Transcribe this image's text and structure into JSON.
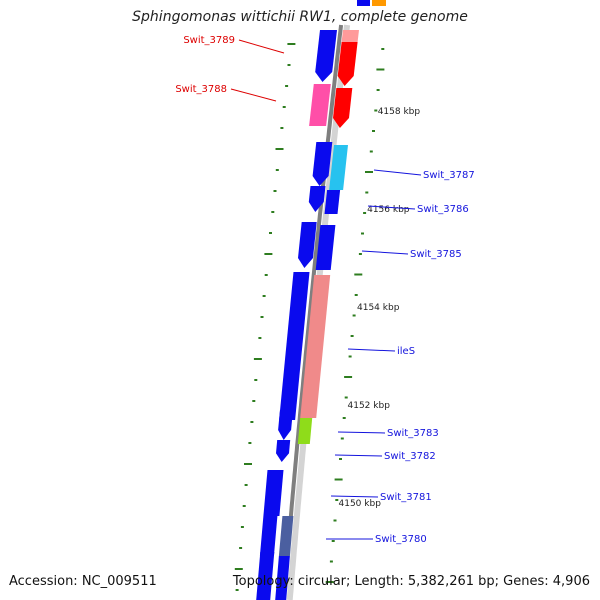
{
  "title": "Sphingomonas wittichii RW1, complete genome",
  "accession_text": "Accession: NC_009511",
  "summary_text": "Topology: circular; Length: 5,382,261 bp; Genes: 4,906",
  "colors": {
    "backbone_dark": "#7f7f7f",
    "backbone_light": "#d4d4d4",
    "cds_blue": "#0a0aee",
    "red": "#ff0000",
    "salmon": "#ff9a9a",
    "pink": "#ff4fa8",
    "magenta": "#e01090",
    "cyan": "#27c2ef",
    "ile_pink": "#f08a8a",
    "lime": "#8fdc1a",
    "slate": "#4b5fa0",
    "steel": "#5a7fa8",
    "orange": "#ff9900",
    "tick_green": "#2e7d1f",
    "label_red": "#dd0000",
    "label_blue": "#1414dd"
  },
  "scale_labels": [
    {
      "kbp": 4158,
      "text": "4158 kbp"
    },
    {
      "kbp": 4156,
      "text": "4156 kbp"
    },
    {
      "kbp": 4154,
      "text": "4154 kbp"
    },
    {
      "kbp": 4152,
      "text": "4152 kbp"
    },
    {
      "kbp": 4150,
      "text": "4150 kbp"
    }
  ],
  "gene_labels": [
    {
      "name": "Swit_3789",
      "side": "left",
      "color": "label_red"
    },
    {
      "name": "Swit_3788",
      "side": "left",
      "color": "label_red"
    },
    {
      "name": "Swit_3787",
      "side": "right",
      "color": "label_blue"
    },
    {
      "name": "Swit_3786",
      "side": "right",
      "color": "label_blue"
    },
    {
      "name": "Swit_3785",
      "side": "right",
      "color": "label_blue"
    },
    {
      "name": "ileS",
      "side": "right",
      "color": "label_blue"
    },
    {
      "name": "Swit_3783",
      "side": "right",
      "color": "label_blue"
    },
    {
      "name": "Swit_3782",
      "side": "right",
      "color": "label_blue"
    },
    {
      "name": "Swit_3781",
      "side": "right",
      "color": "label_blue"
    },
    {
      "name": "Swit_3780",
      "side": "right",
      "color": "label_blue"
    }
  ]
}
